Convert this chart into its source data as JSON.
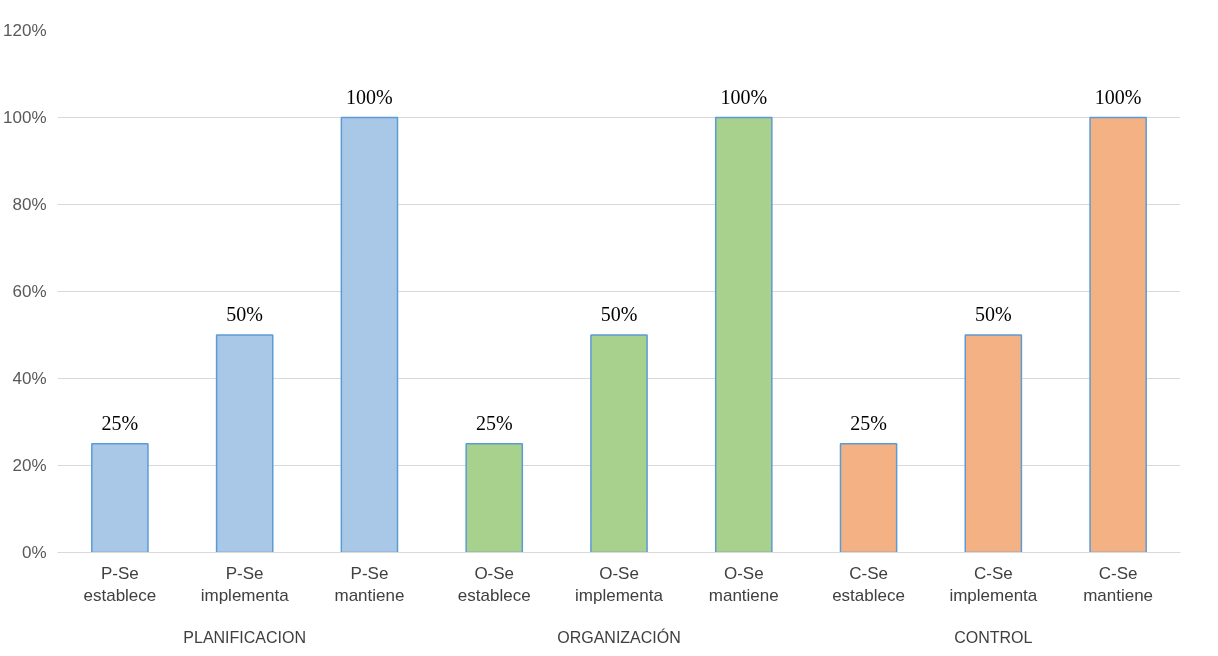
{
  "chart_data": {
    "type": "bar",
    "categories": [
      "P-Se establece",
      "P-Se implementa",
      "P-Se mantiene",
      "O-Se establece",
      "O-Se implementa",
      "O-Se mantiene",
      "C-Se establece",
      "C-Se implementa",
      "C-Se mantiene"
    ],
    "values": [
      25,
      50,
      100,
      25,
      50,
      100,
      25,
      50,
      100
    ],
    "colors": [
      "#a9c8e8",
      "#a9c8e8",
      "#a9c8e8",
      "#a9d18e",
      "#a9d18e",
      "#a9d18e",
      "#f4b183",
      "#f4b183",
      "#f4b183"
    ],
    "value_labels": [
      "25%",
      "50%",
      "100%",
      "25%",
      "50%",
      "100%",
      "25%",
      "50%",
      "100%"
    ],
    "annotations": [
      "PLANIFICACION",
      "ORGANIZACIÓN",
      "CONTROL"
    ],
    "ylim": [
      0,
      120
    ],
    "yticks": [
      {
        "value": 0,
        "label": "0%"
      },
      {
        "value": 20,
        "label": "20%"
      },
      {
        "value": 40,
        "label": "40%"
      },
      {
        "value": 60,
        "label": "60%"
      },
      {
        "value": 80,
        "label": "80%"
      },
      {
        "value": 100,
        "label": "100%"
      },
      {
        "value": 120,
        "label": "120%"
      }
    ],
    "grid": "y"
  }
}
